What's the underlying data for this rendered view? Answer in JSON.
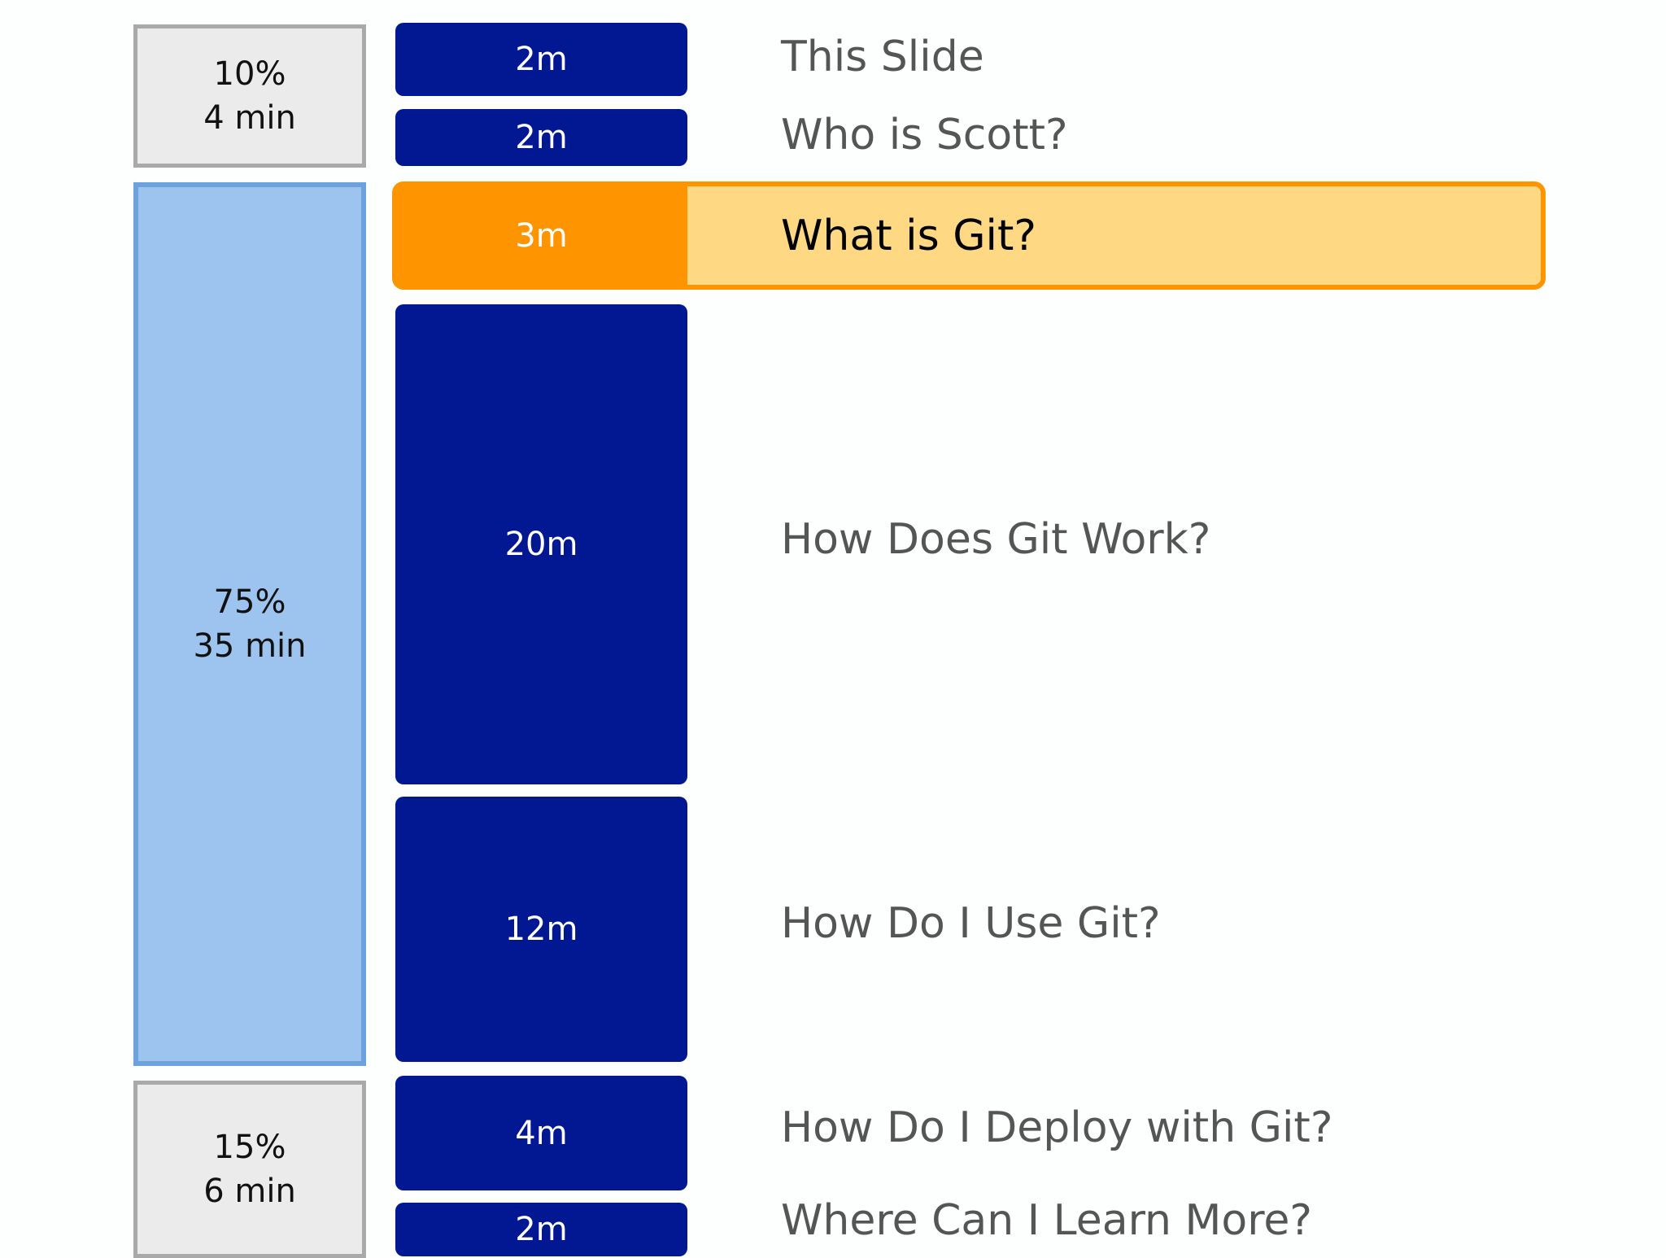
{
  "colors": {
    "time_block": "#021893",
    "current_block": "#fe9500",
    "current_band": "#ffd883",
    "section_main": "#9dc3ef",
    "section_other": "#ebebeb"
  },
  "sections": [
    {
      "percent": "10%",
      "duration": "4 min"
    },
    {
      "percent": "75%",
      "duration": "35 min"
    },
    {
      "percent": "15%",
      "duration": "6 min"
    }
  ],
  "agenda": [
    {
      "duration": "2m",
      "topic": "This Slide"
    },
    {
      "duration": "2m",
      "topic": "Who is Scott?"
    },
    {
      "duration": "3m",
      "topic": "What is Git?",
      "current": true
    },
    {
      "duration": "20m",
      "topic": "How Does Git Work?"
    },
    {
      "duration": "12m",
      "topic": "How Do I Use Git?"
    },
    {
      "duration": "4m",
      "topic": "How Do I Deploy with Git?"
    },
    {
      "duration": "2m",
      "topic": "Where Can I Learn More?"
    }
  ]
}
